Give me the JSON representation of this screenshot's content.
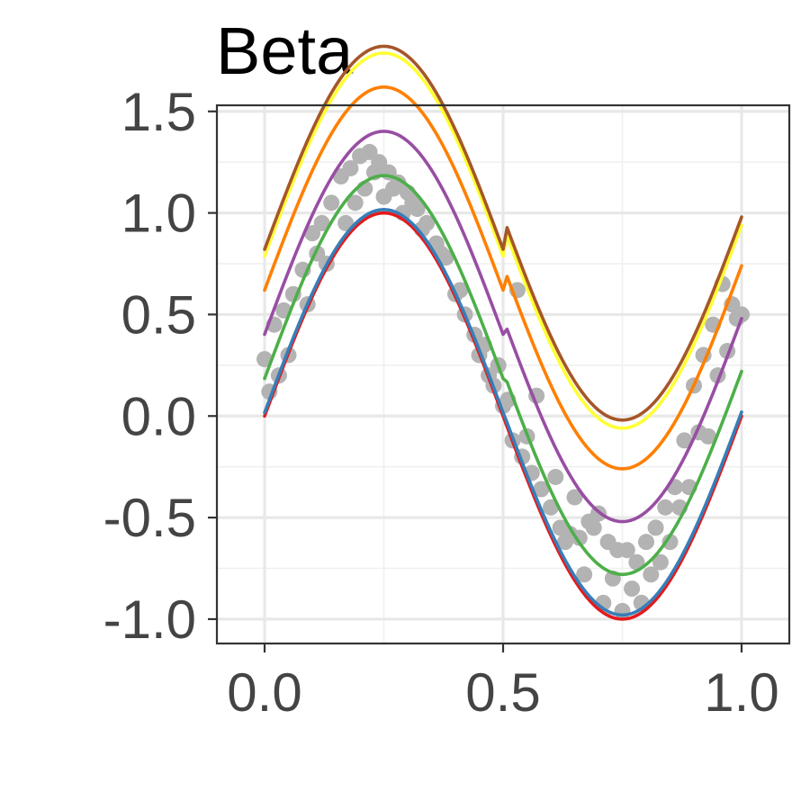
{
  "chart_data": {
    "type": "scatter",
    "title": "Beta",
    "xlabel": "",
    "ylabel": "",
    "xlim": [
      -0.1,
      1.1
    ],
    "ylim": [
      -1.12,
      1.53
    ],
    "x_ticks": [
      "0.0",
      "0.5",
      "1.0"
    ],
    "x_tick_values": [
      0.0,
      0.5,
      1.0
    ],
    "y_ticks": [
      "1.5",
      "1.0",
      "0.5",
      "0.0",
      "-0.5",
      "-1.0"
    ],
    "y_tick_values": [
      1.5,
      1.0,
      0.5,
      0.0,
      -0.5,
      -1.0
    ],
    "grid": true,
    "legend": "none",
    "point_color": "#b3b3b3",
    "points": {
      "x": [
        0.0,
        0.02,
        0.04,
        0.06,
        0.08,
        0.1,
        0.12,
        0.14,
        0.16,
        0.18,
        0.2,
        0.22,
        0.24,
        0.26,
        0.28,
        0.3,
        0.32,
        0.34,
        0.36,
        0.38,
        0.4,
        0.42,
        0.44,
        0.46,
        0.48,
        0.5,
        0.52,
        0.54,
        0.56,
        0.58,
        0.6,
        0.62,
        0.64,
        0.66,
        0.68,
        0.7,
        0.72,
        0.74,
        0.76,
        0.78,
        0.8,
        0.82,
        0.84,
        0.86,
        0.88,
        0.9,
        0.92,
        0.94,
        0.96,
        0.98,
        1.0,
        0.01,
        0.05,
        0.09,
        0.13,
        0.17,
        0.21,
        0.25,
        0.29,
        0.33,
        0.37,
        0.41,
        0.45,
        0.49,
        0.53,
        0.57,
        0.61,
        0.65,
        0.69,
        0.73,
        0.77,
        0.81,
        0.85,
        0.89,
        0.93,
        0.97,
        0.03,
        0.11,
        0.19,
        0.23,
        0.27,
        0.31,
        0.47,
        0.51,
        0.55,
        0.63,
        0.67,
        0.71,
        0.75,
        0.79,
        0.83,
        0.87,
        0.91,
        0.95,
        0.99
      ],
      "y": [
        0.28,
        0.45,
        0.52,
        0.6,
        0.72,
        0.9,
        0.95,
        1.05,
        1.18,
        1.22,
        1.28,
        1.3,
        1.25,
        1.2,
        1.15,
        1.1,
        1.02,
        0.95,
        0.85,
        0.78,
        0.6,
        0.5,
        0.4,
        0.35,
        0.15,
        0.05,
        -0.12,
        -0.2,
        -0.28,
        -0.36,
        -0.45,
        -0.55,
        -0.58,
        -0.6,
        -0.52,
        -0.48,
        -0.62,
        -0.66,
        -0.66,
        -0.72,
        -0.62,
        -0.55,
        -0.45,
        -0.35,
        -0.12,
        0.15,
        0.3,
        0.45,
        0.65,
        0.55,
        0.5,
        0.12,
        0.3,
        0.55,
        0.75,
        0.95,
        1.12,
        1.08,
        1.0,
        0.92,
        0.8,
        0.62,
        0.3,
        0.25,
        0.62,
        0.1,
        -0.3,
        -0.4,
        -0.55,
        -0.8,
        -0.85,
        -0.78,
        -0.62,
        -0.35,
        -0.1,
        0.32,
        0.2,
        0.8,
        1.05,
        1.2,
        1.12,
        1.05,
        0.2,
        0.08,
        -0.1,
        -0.62,
        -0.78,
        -0.92,
        -0.96,
        -0.92,
        -0.72,
        -0.45,
        -0.08,
        0.2,
        0.48
      ]
    },
    "series": [
      {
        "color": "#e41a1c",
        "values_fn": "offset",
        "offset": 0.0
      },
      {
        "color": "#377eb8",
        "offset": 0.02
      },
      {
        "color": "#4daf4a",
        "offset": 0.22
      },
      {
        "color": "#984ea3",
        "offset": 0.48
      },
      {
        "color": "#ff7f00",
        "offset": 0.74
      },
      {
        "color": "#ffff33",
        "offset": 0.94
      },
      {
        "color": "#a65628",
        "offset": 0.98
      }
    ]
  }
}
